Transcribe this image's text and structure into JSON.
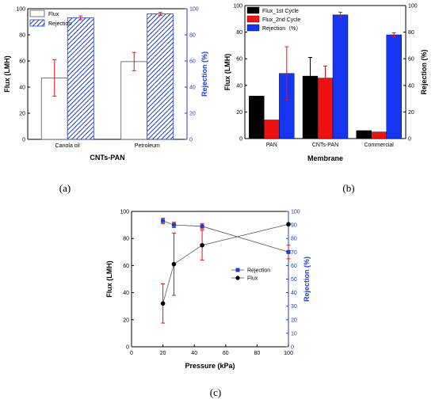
{
  "chart_data": [
    {
      "id": "a",
      "type": "bar",
      "panel_label": "(a)",
      "categories": [
        "Canola oil",
        "Petroleum"
      ],
      "xlabel": "CNTs-PAN",
      "ylabel": "Flux (LMH)",
      "ylabel_right": "Rejection (%)",
      "ylim": [
        0,
        100
      ],
      "ylim_right": [
        0,
        100
      ],
      "yticks": [
        "0",
        "20",
        "40",
        "60",
        "80",
        "100"
      ],
      "yticks_right": [
        "0",
        "20",
        "40",
        "60",
        "80",
        "100"
      ],
      "legend_position": "top-left",
      "series": [
        {
          "name": "Flux",
          "axis": "left",
          "values": [
            47,
            59.5
          ],
          "errors": [
            14,
            7
          ],
          "style": "hollow",
          "color": "#555555"
        },
        {
          "name": "Rejection",
          "axis": "right",
          "values": [
            93,
            96
          ],
          "errors": [
            1.5,
            1.2
          ],
          "style": "hatched",
          "color": "#1f3bd6"
        }
      ]
    },
    {
      "id": "b",
      "type": "bar",
      "panel_label": "(b)",
      "categories": [
        "PAN",
        "CNTs-PAN",
        "Commercial"
      ],
      "xlabel": "Membrane",
      "ylabel": "Flux (LMH)",
      "ylabel_right": "Rejection (%)",
      "ylim": [
        0,
        100
      ],
      "ylim_right": [
        0,
        100
      ],
      "yticks": [
        "0",
        "20",
        "40",
        "60",
        "80",
        "100"
      ],
      "yticks_right": [
        "0",
        "20",
        "40",
        "60",
        "80",
        "100"
      ],
      "legend_position": "top-left",
      "series": [
        {
          "name": "Flux_1st Cycle",
          "axis": "left",
          "values": [
            32,
            47,
            6
          ],
          "errors": [
            0,
            14,
            0
          ],
          "color": "#000000"
        },
        {
          "name": "Flux_2nd Cycle",
          "axis": "left",
          "values": [
            14,
            45.5,
            5
          ],
          "errors": [
            0,
            9,
            0
          ],
          "color": "#ee1111"
        },
        {
          "name": "Rejection（%）",
          "axis": "right",
          "values": [
            49,
            93,
            78
          ],
          "errors": [
            20,
            2,
            1.5
          ],
          "color": "#1535f0"
        }
      ]
    },
    {
      "id": "c",
      "type": "line",
      "panel_label": "(c)",
      "xlabel": "Pressure (kPa)",
      "ylabel": "Flux (LMH)",
      "ylabel_right": "Rejection (%)",
      "xlim": [
        0,
        100
      ],
      "ylim": [
        0,
        100
      ],
      "ylim_right": [
        0,
        100
      ],
      "xticks": [
        "0",
        "20",
        "40",
        "60",
        "80",
        "100"
      ],
      "yticks": [
        "0",
        "20",
        "40",
        "60",
        "80",
        "100"
      ],
      "yticks_right": [
        "0",
        "10",
        "20",
        "30",
        "40",
        "50",
        "60",
        "70",
        "80",
        "90",
        "100"
      ],
      "legend_position": "center-right",
      "x": [
        20,
        27,
        45,
        100
      ],
      "series": [
        {
          "name": "Rejection",
          "axis": "right",
          "values": [
            93,
            90,
            89,
            70
          ],
          "errors": [
            2,
            2,
            2,
            5
          ],
          "marker": "square",
          "color": "#1f3bd6"
        },
        {
          "name": "Flux",
          "axis": "left",
          "values": [
            32,
            61,
            75,
            90.5
          ],
          "errors": [
            14.5,
            23,
            11,
            0
          ],
          "marker": "circle",
          "color": "#000000"
        }
      ]
    }
  ]
}
